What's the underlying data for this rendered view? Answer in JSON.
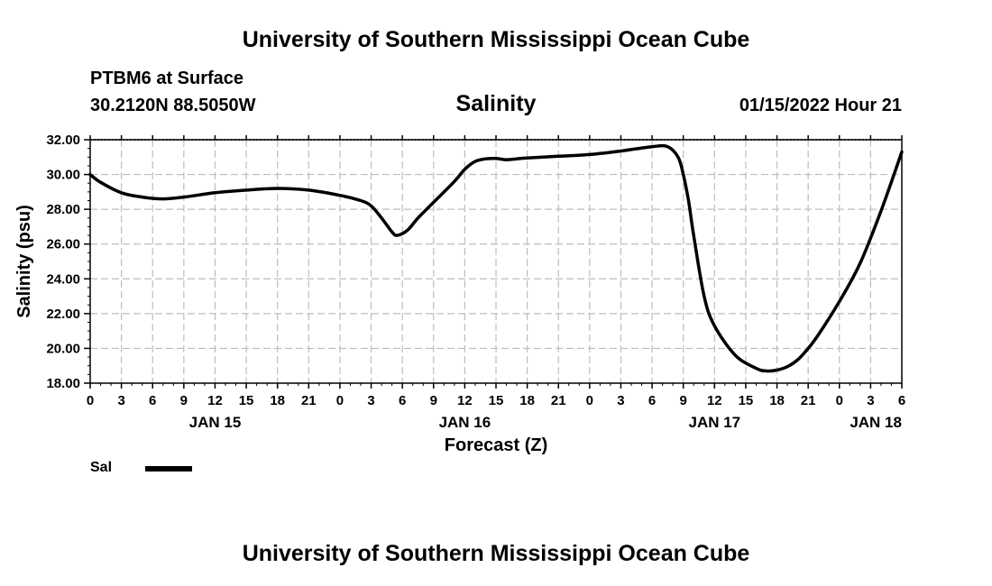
{
  "header": {
    "org_title": "University of Southern Mississippi Ocean Cube",
    "station": "PTBM6 at Surface",
    "coords": "30.2120N  88.5050W",
    "datetime": "01/15/2022 Hour 21"
  },
  "footer": {
    "org_title": "University of Southern Mississippi Ocean Cube"
  },
  "legend": {
    "label": "Sal",
    "color": "#000000"
  },
  "chart_data": {
    "type": "line",
    "title": "Salinity",
    "xlabel": "Forecast (Z)",
    "ylabel": "Salinity (psu)",
    "x_unit": "hours since JAN 15 00Z",
    "xlim": [
      0,
      78
    ],
    "ylim": [
      18,
      32
    ],
    "grid": true,
    "legend_position": "bottom-left",
    "x_ticks": [
      0,
      3,
      6,
      9,
      12,
      15,
      18,
      21,
      24,
      27,
      30,
      33,
      36,
      39,
      42,
      45,
      48,
      51,
      54,
      57,
      60,
      63,
      66,
      69,
      72,
      75,
      78
    ],
    "x_tick_labels": [
      "0",
      "3",
      "6",
      "9",
      "12",
      "15",
      "18",
      "21",
      "0",
      "3",
      "6",
      "9",
      "12",
      "15",
      "18",
      "21",
      "0",
      "3",
      "6",
      "9",
      "12",
      "15",
      "18",
      "21",
      "0",
      "3",
      "6"
    ],
    "date_labels": [
      {
        "x": 12,
        "label": "JAN 15"
      },
      {
        "x": 36,
        "label": "JAN 16"
      },
      {
        "x": 60,
        "label": "JAN 17"
      },
      {
        "x": 75.5,
        "label": "JAN 18"
      }
    ],
    "y_ticks": [
      18,
      20,
      22,
      24,
      26,
      28,
      30,
      32
    ],
    "y_tick_labels": [
      "18.00",
      "20.00",
      "22.00",
      "24.00",
      "26.00",
      "28.00",
      "30.00",
      "32.00"
    ],
    "series": [
      {
        "name": "Sal",
        "x": [
          0,
          1,
          3,
          5,
          7,
          9,
          12,
          15,
          18,
          21,
          24,
          26,
          27,
          28,
          29,
          29.5,
          30.5,
          31.5,
          33,
          35,
          36,
          37,
          38,
          39,
          40,
          41,
          42,
          45,
          48,
          51,
          54,
          55.5,
          56.5,
          57,
          57.5,
          58,
          59,
          60,
          62,
          64,
          65,
          66,
          67,
          68,
          69,
          70,
          72,
          74,
          76,
          78
        ],
        "y": [
          30.0,
          29.55,
          28.95,
          28.7,
          28.6,
          28.7,
          28.95,
          29.1,
          29.2,
          29.1,
          28.8,
          28.5,
          28.2,
          27.5,
          26.7,
          26.5,
          26.8,
          27.5,
          28.4,
          29.6,
          30.3,
          30.75,
          30.9,
          30.92,
          30.85,
          30.9,
          30.95,
          31.05,
          31.15,
          31.35,
          31.6,
          31.6,
          31.0,
          30.0,
          28.5,
          26.5,
          23.0,
          21.3,
          19.6,
          18.85,
          18.7,
          18.75,
          18.95,
          19.35,
          20.0,
          20.8,
          22.7,
          24.9,
          27.9,
          31.3
        ]
      }
    ]
  }
}
